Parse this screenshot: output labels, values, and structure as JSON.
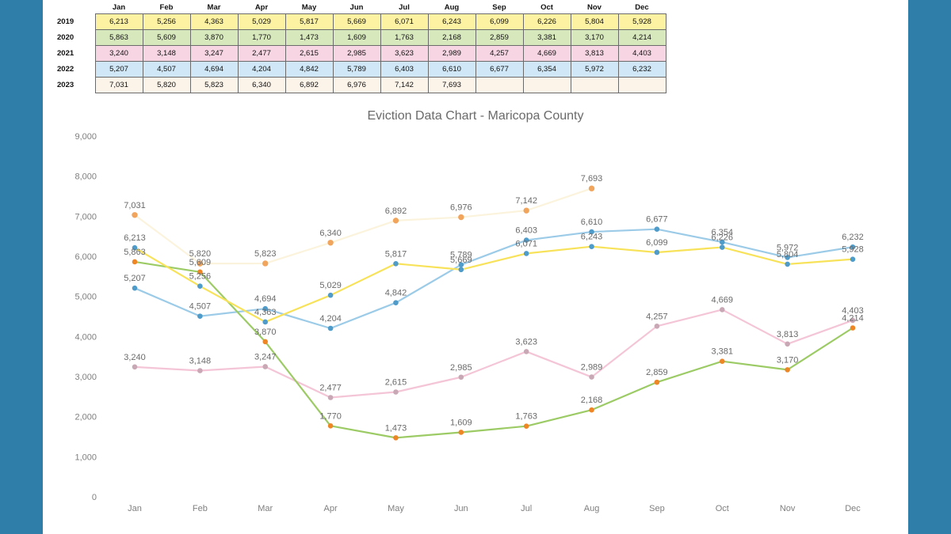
{
  "table": {
    "months": [
      "Jan",
      "Feb",
      "Mar",
      "Apr",
      "May",
      "Jun",
      "Jul",
      "Aug",
      "Sep",
      "Oct",
      "Nov",
      "Dec"
    ],
    "rows": [
      {
        "year": "2019",
        "values": [
          "6,213",
          "5,256",
          "4,363",
          "5,029",
          "5,817",
          "5,669",
          "6,071",
          "6,243",
          "6,099",
          "6,226",
          "5,804",
          "5,928"
        ]
      },
      {
        "year": "2020",
        "values": [
          "5,863",
          "5,609",
          "3,870",
          "1,770",
          "1,473",
          "1,609",
          "1,763",
          "2,168",
          "2,859",
          "3,381",
          "3,170",
          "4,214"
        ]
      },
      {
        "year": "2021",
        "values": [
          "3,240",
          "3,148",
          "3,247",
          "2,477",
          "2,615",
          "2,985",
          "3,623",
          "2,989",
          "4,257",
          "4,669",
          "3,813",
          "4,403"
        ]
      },
      {
        "year": "2022",
        "values": [
          "5,207",
          "4,507",
          "4,694",
          "4,204",
          "4,842",
          "5,789",
          "6,403",
          "6,610",
          "6,677",
          "6,354",
          "5,972",
          "6,232"
        ]
      },
      {
        "year": "2023",
        "values": [
          "7,031",
          "5,820",
          "5,823",
          "6,340",
          "6,892",
          "6,976",
          "7,142",
          "7,693",
          "",
          "",
          "",
          ""
        ]
      }
    ]
  },
  "chart_data": {
    "type": "line",
    "title": "Eviction Data Chart - Maricopa County",
    "categories": [
      "Jan",
      "Feb",
      "Mar",
      "Apr",
      "May",
      "Jun",
      "Jul",
      "Aug",
      "Sep",
      "Oct",
      "Nov",
      "Dec"
    ],
    "ylim": [
      0,
      9000
    ],
    "yticks": [
      0,
      1000,
      2000,
      3000,
      4000,
      5000,
      6000,
      7000,
      8000,
      9000
    ],
    "ytick_labels": [
      "0",
      "1,000",
      "2,000",
      "3,000",
      "4,000",
      "5,000",
      "6,000",
      "7,000",
      "8,000",
      "9,000"
    ],
    "grid": false,
    "legend": "none",
    "series": [
      {
        "values": [
          6213,
          5256,
          4363,
          5029,
          5817,
          5669,
          6071,
          6243,
          6099,
          6226,
          5804,
          5928
        ],
        "line_color": "#f7e25a",
        "marker_color": "#4f9bc9",
        "marker_fill": true
      },
      {
        "values": [
          5863,
          5609,
          3870,
          1770,
          1473,
          1609,
          1763,
          2168,
          2859,
          3381,
          3170,
          4214
        ],
        "line_color": "#9ccb65",
        "marker_color": "#ee8626",
        "marker_fill": true
      },
      {
        "values": [
          3240,
          3148,
          3247,
          2477,
          2615,
          2985,
          3623,
          2989,
          4257,
          4669,
          3813,
          4403
        ],
        "line_color": "#f4c5d6",
        "marker_color": "#c9a8b5",
        "marker_fill": true
      },
      {
        "values": [
          5207,
          4507,
          4694,
          4204,
          4842,
          5789,
          6403,
          6610,
          6677,
          6354,
          5972,
          6232
        ],
        "line_color": "#9ccbe8",
        "marker_color": "#4f9bc9",
        "marker_fill": true
      },
      {
        "values": [
          7031,
          5820,
          5823,
          6340,
          6892,
          6976,
          7142,
          7693,
          null,
          null,
          null,
          null
        ],
        "line_color": "#fbf3dc",
        "marker_color": "#f1a45c",
        "marker_fill": false
      }
    ]
  }
}
